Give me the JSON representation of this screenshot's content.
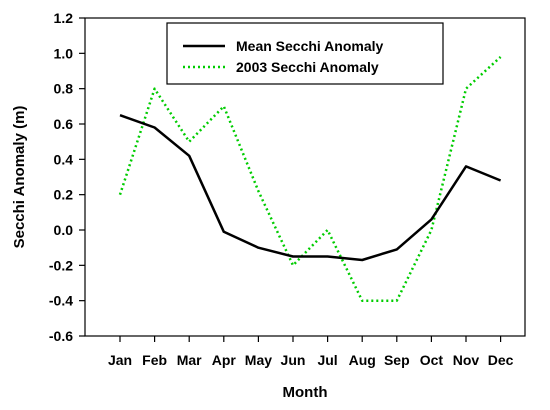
{
  "chart_data": {
    "type": "line",
    "title": "",
    "xlabel": "Month",
    "ylabel": "Secchi Anomaly (m)",
    "categories": [
      "Jan",
      "Feb",
      "Mar",
      "Apr",
      "May",
      "Jun",
      "Jul",
      "Aug",
      "Sep",
      "Oct",
      "Nov",
      "Dec"
    ],
    "ylim": [
      -0.6,
      1.2
    ],
    "yticks": [
      "-0.6",
      "-0.4",
      "-0.2",
      "0.0",
      "0.2",
      "0.4",
      "0.6",
      "0.8",
      "1.0",
      "1.2"
    ],
    "grid": false,
    "legend_position": "top-center",
    "series": [
      {
        "name": "Mean Secchi Anomaly",
        "style": "solid",
        "color": "#000000",
        "values": [
          0.65,
          0.58,
          0.42,
          -0.01,
          -0.1,
          -0.15,
          -0.15,
          -0.17,
          -0.11,
          0.06,
          0.36,
          0.28
        ]
      },
      {
        "name": "2003 Secchi Anomaly",
        "style": "dotted",
        "color": "#00cc00",
        "values": [
          0.2,
          0.8,
          0.5,
          0.7,
          0.22,
          -0.2,
          0.0,
          -0.4,
          -0.4,
          0.0,
          0.8,
          0.98
        ]
      }
    ]
  }
}
